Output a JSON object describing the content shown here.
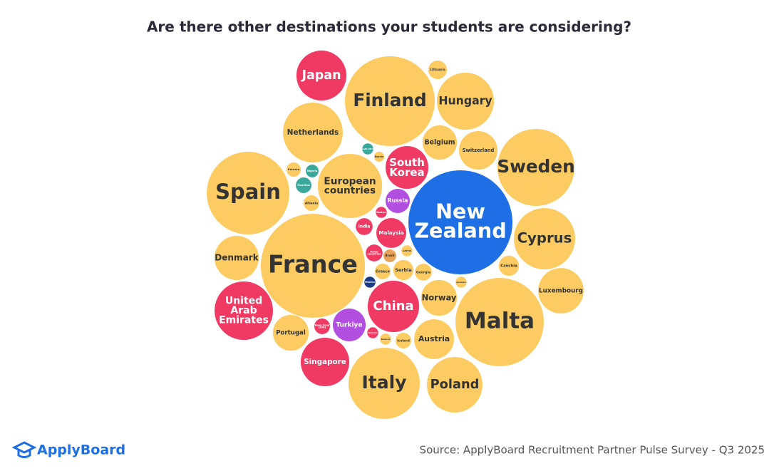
{
  "chart_data": {
    "type": "bubble",
    "title": "Are there other destinations your students are considering?",
    "source": "Source: ApplyBoard Recruitment Partner Pulse Survey - Q3 2025",
    "logo": "ApplyBoard",
    "categories": [
      "Japan",
      "Finland",
      "Lithuania",
      "Hungary",
      "Netherlands",
      "Belgium",
      "Switzerland",
      "Sweden",
      "South Africa",
      "Bosnia",
      "South Korea",
      "Estonia",
      "Nigeria",
      "Mauritius",
      "European countries",
      "Spain",
      "Albania",
      "Russia",
      "New Zealand",
      "Cyprus",
      "Sudan",
      "India",
      "Malaysia",
      "Denmark",
      "France",
      "Asian countries",
      "Brazil",
      "Latvia",
      "Czechia",
      "Greece",
      "Serbia",
      "Georgia",
      "Jamaica",
      "Mexico",
      "Norway",
      "Luxembourg",
      "Malta",
      "United Arab Emirates",
      "China",
      "Turkiye",
      "Hong Kong (SAR)",
      "Bahrain",
      "Portugal",
      "Belarus",
      "Iceland",
      "Austria",
      "Singapore",
      "Italy",
      "Poland"
    ],
    "values": [
      12.3,
      39.7,
      1.7,
      16,
      17.6,
      5.8,
      7.3,
      29.2,
      0.6,
      0.5,
      9,
      1,
      0.8,
      1.2,
      20.3,
      33.6,
      1.2,
      2.9,
      53.3,
      18.5,
      0.6,
      1.4,
      4.4,
      9.6,
      53.3,
      1.4,
      0.8,
      0.6,
      2,
      1.2,
      2,
      1.4,
      0.6,
      0.6,
      6.3,
      10.2,
      38.4,
      16.8,
      13,
      5.3,
      1.2,
      0.6,
      6.3,
      0.6,
      1.2,
      7.8,
      11.6,
      25,
      15.2
    ],
    "colors": [
      "#f03a64",
      "#fccb62",
      "#fccb62",
      "#fccb62",
      "#fccb62",
      "#fccb62",
      "#fccb62",
      "#fccb62",
      "#3aa89a",
      "#fccb62",
      "#f03a64",
      "#fccb62",
      "#3aa89a",
      "#3aa89a",
      "#fccb62",
      "#fccb62",
      "#fccb62",
      "#b34fe0",
      "#1e6fe6",
      "#fccb62",
      "#f03a64",
      "#f03a64",
      "#f03a64",
      "#fccb62",
      "#fccb62",
      "#f03a64",
      "#e9a35a",
      "#fccb62",
      "#fccb62",
      "#fccb62",
      "#fccb62",
      "#fccb62",
      "#fccb62",
      "#1b3b8a",
      "#fccb62",
      "#fccb62",
      "#fccb62",
      "#f03a64",
      "#f03a64",
      "#b34fe0",
      "#f03a64",
      "#f03a64",
      "#fccb62",
      "#fccb62",
      "#fccb62",
      "#fccb62",
      "#f03a64",
      "#fccb62",
      "#fccb62"
    ]
  }
}
